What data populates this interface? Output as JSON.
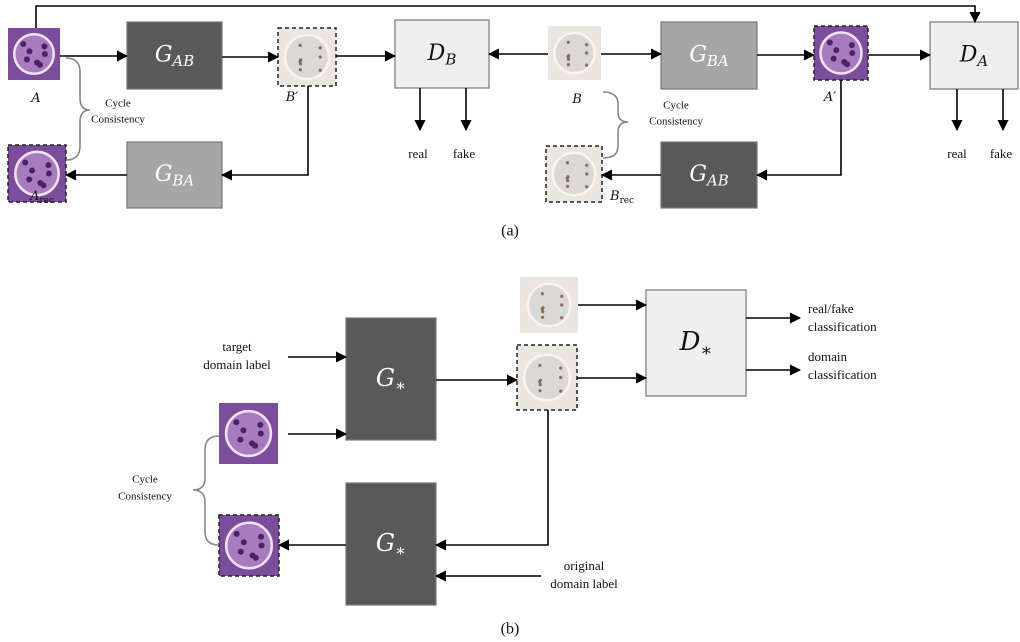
{
  "panel_a": {
    "caption": "(a)",
    "blocks": [
      {
        "main": "G",
        "sub": "AB"
      },
      {
        "main": "D",
        "sub": "B"
      },
      {
        "main": "G",
        "sub": "BA"
      },
      {
        "main": "D",
        "sub": "A"
      },
      {
        "main": "G",
        "sub": "BA"
      },
      {
        "main": "G",
        "sub": "AB"
      }
    ],
    "image_labels": [
      {
        "main": "A"
      },
      {
        "main": "B′"
      },
      {
        "main": "A",
        "sub": "rec"
      },
      {
        "main": "B"
      },
      {
        "main": "A′"
      },
      {
        "main": "B",
        "sub": "rec"
      }
    ],
    "cycle_labels": [
      [
        "Cycle",
        "Consistency"
      ],
      [
        "Cycle",
        "Consistency"
      ]
    ],
    "outputs": [
      "real",
      "fake",
      "real",
      "fake"
    ]
  },
  "panel_b": {
    "caption": "(b)",
    "blocks": [
      {
        "main": "G",
        "sub": "∗"
      },
      {
        "main": "G",
        "sub": "∗"
      },
      {
        "main": "D",
        "sub": "∗"
      }
    ],
    "inputs": [
      [
        "target",
        "domain label"
      ],
      [
        "original",
        "domain label"
      ]
    ],
    "outputs": [
      [
        "real/fake",
        "classification"
      ],
      [
        "domain",
        "classification"
      ]
    ],
    "cycle_label": [
      "Cycle",
      "Consistency"
    ]
  }
}
